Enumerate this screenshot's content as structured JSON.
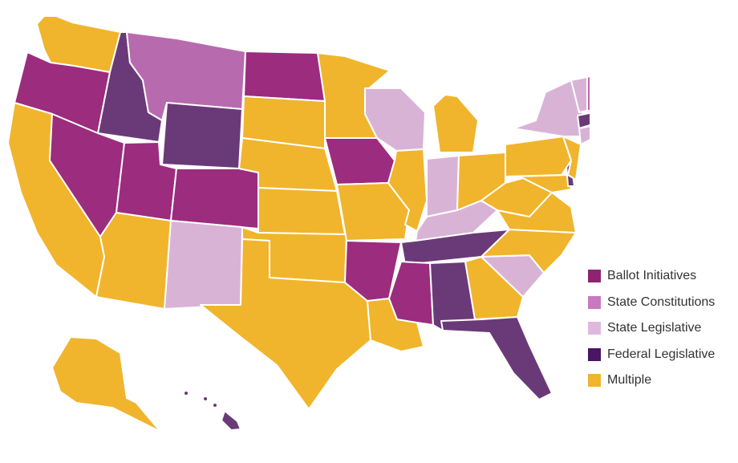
{
  "colors": {
    "ballot": "#9b2c7e",
    "constitution": "#b86aae",
    "legislative": "#d9b3d6",
    "federal": "#6a3a78",
    "multiple": "#f0b52d"
  },
  "legend": {
    "items": [
      {
        "label": "Ballot Initiatives",
        "color_key": "ballot",
        "swatch": "#8e236f"
      },
      {
        "label": "State Constitutions",
        "color_key": "constitution",
        "swatch": "#c879c0"
      },
      {
        "label": "State Legislative",
        "color_key": "legislative",
        "swatch": "#dfb9dd"
      },
      {
        "label": "Federal Legislative",
        "color_key": "federal",
        "swatch": "#4a1562"
      },
      {
        "label": "Multiple",
        "color_key": "multiple",
        "swatch": "#f0b52d"
      }
    ]
  },
  "states": {
    "WA": "multiple",
    "OR": "ballot",
    "CA": "multiple",
    "ID": "federal",
    "NV": "ballot",
    "MT": "constitution",
    "WY": "federal",
    "UT": "ballot",
    "AZ": "multiple",
    "CO": "ballot",
    "NM": "legislative",
    "ND": "ballot",
    "SD": "multiple",
    "NE": "multiple",
    "KS": "multiple",
    "OK": "multiple",
    "TX": "multiple",
    "MN": "multiple",
    "IA": "ballot",
    "MO": "multiple",
    "AR": "ballot",
    "LA": "multiple",
    "WI": "legislative",
    "IL": "multiple",
    "MI": "multiple",
    "IN": "legislative",
    "OH": "multiple",
    "KY": "legislative",
    "TN": "federal",
    "MS": "ballot",
    "AL": "federal",
    "GA": "multiple",
    "FL": "federal",
    "SC": "legislative",
    "NC": "multiple",
    "VA": "multiple",
    "WV": "multiple",
    "MD": "multiple",
    "DE": "federal",
    "NJ": "multiple",
    "PA": "multiple",
    "NY": "legislative",
    "CT": "legislative",
    "RI": "legislative",
    "MA": "federal",
    "VT": "legislative",
    "NH": "constitution",
    "ME": "federal",
    "AK": "multiple",
    "HI": "federal"
  }
}
